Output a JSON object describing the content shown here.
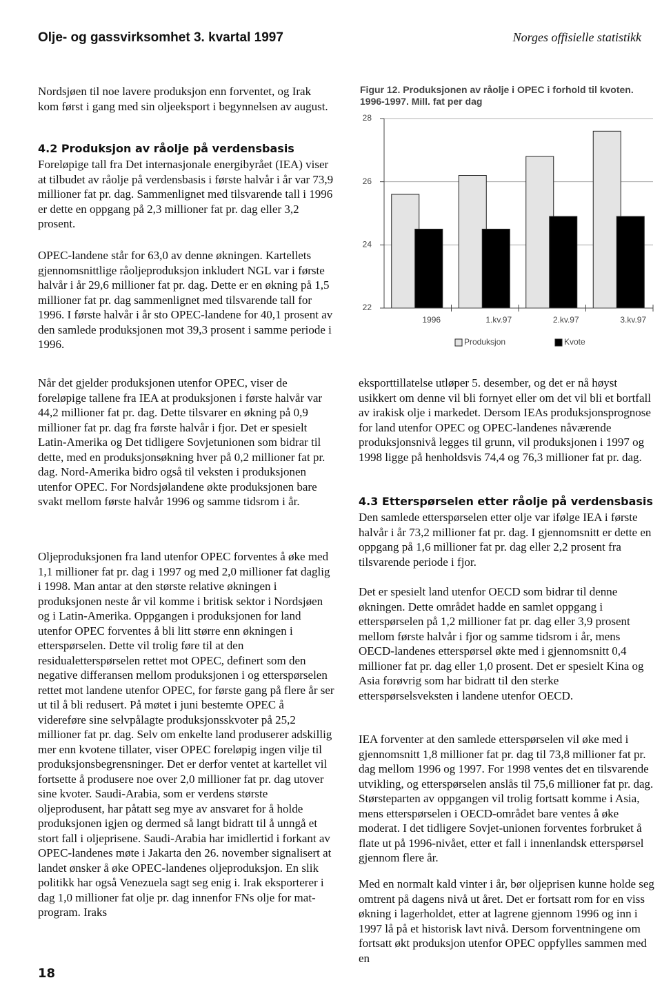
{
  "header": {
    "left": "Olje- og gassvirksomhet 3. kvartal 1997",
    "right": "Norges offisielle statistikk"
  },
  "headings": [
    "4.2 Produksjon av råolje på verdensbasis",
    "4.3 Etterspørselen etter råolje på verdensbasis"
  ],
  "paragraphs": [
    "Nordsjøen til noe lavere produksjon enn forventet, og Irak kom først i gang med sin oljeeksport i begynnelsen av august.",
    "Foreløpige tall fra Det internasjonale energibyrået (IEA) viser at tilbudet av råolje på verdensbasis i første halvår i år var 73,9 millioner fat pr. dag. Sammenlignet med tilsvarende tall i 1996 er dette en oppgang på 2,3 millioner fat pr. dag eller 3,2 prosent.",
    "OPEC-landene står for 63,0 av denne økningen. Kartellets gjennomsnittlige råoljeproduksjon inkludert NGL var i første halvår i år 29,6 millioner fat pr. dag. Dette er en økning på 1,5 millioner fat pr. dag sammenlignet med tilsvarende tall for 1996. I første halvår i år sto OPEC-landene for 40,1 prosent av den samlede produksjonen mot 39,3 prosent i samme periode i 1996.",
    "Når det gjelder produksjonen utenfor OPEC, viser de foreløpige tallene fra IEA at produksjonen i første halvår var 44,2 millioner fat pr. dag. Dette tilsvarer en økning på 0,9 millioner fat pr. dag fra første halvår i fjor. Det er spesielt Latin-Amerika og Det tidligere Sovjetunionen som bidrar til dette, med en produksjonsøkning hver på 0,2 millioner fat pr. dag. Nord-Amerika bidro også til veksten i produksjonen utenfor OPEC. For Nordsjølandene økte produksjonen bare svakt mellom første halvår 1996 og samme tidsrom i år.",
    "Oljeproduksjonen fra land utenfor OPEC forventes å øke med 1,1 millioner fat pr. dag i 1997 og med 2,0 millioner fat daglig i 1998. Man antar at den største relative økningen i produksjonen neste år vil komme i britisk sektor i Nordsjøen og i Latin-Amerika. Oppgangen i produksjonen for land utenfor OPEC forventes å bli litt større enn økningen i etterspørselen. Dette vil trolig føre til at den residualetterspørselen rettet mot OPEC, definert som den negative differansen mellom produksjonen i og etterspørselen rettet mot landene utenfor OPEC, for første gang på flere år ser ut til å bli redusert. På møtet i juni bestemte OPEC å videreføre sine selvpålagte produksjonsskvoter på 25,2 millioner fat pr. dag. Selv om enkelte land produserer adskillig mer enn kvotene tillater, viser OPEC foreløpig ingen vilje til produksjonsbegrensninger. Det er derfor ventet at kartellet vil fortsette å produsere noe over 2,0 millioner fat pr. dag utover sine kvoter. Saudi-Arabia, som er verdens største oljeprodusent, har påtatt seg mye av ansvaret for å holde produksjonen igjen og dermed så langt bidratt til å unngå et stort fall i oljeprisene. Saudi-Arabia har imidlertid i forkant av OPEC-landenes møte i Jakarta den 26. november signalisert at landet ønsker å øke OPEC-landenes oljeproduksjon. En slik politikk har også Venezuela sagt seg enig i. Irak eksporterer i dag 1,0 millioner fat olje pr. dag innenfor FNs olje for mat-program. Iraks",
    "eksporttillatelse utløper 5. desember, og det er nå høyst usikkert om denne vil bli fornyet eller om det vil bli et bortfall av irakisk olje i markedet. Dersom IEAs produksjonsprognose for land utenfor OPEC og OPEC-landenes nåværende produksjonsnivå legges til grunn, vil produksjonen i 1997 og 1998 ligge på henholdsvis 74,4 og 76,3 millioner fat pr. dag.",
    "Den samlede etterspørselen etter olje var ifølge IEA i første halvår i år 73,2 millioner fat pr. dag. I gjennomsnitt er dette en oppgang på 1,6 millioner fat pr. dag eller 2,2 prosent fra tilsvarende periode i fjor.",
    "Det er spesielt land utenfor OECD som bidrar til denne økningen. Dette området hadde en samlet oppgang i etterspørselen på 1,2 millioner fat pr. dag eller 3,9 prosent mellom første halvår i fjor og samme tidsrom i år, mens OECD-landenes etterspørsel økte med i gjennomsnitt 0,4 millioner fat pr. dag eller 1,0 prosent. Det er spesielt Kina og Asia forøvrig som har bidratt til den sterke etterspørselsveksten i landene utenfor OECD.",
    "IEA forventer at den samlede etterspørselen vil øke med i gjennomsnitt 1,8 millioner fat pr. dag til 73,8 millioner fat pr. dag mellom 1996 og 1997. For 1998 ventes det en tilsvarende utvikling, og etterspørselen anslås til 75,6 millioner fat pr. dag. Størsteparten av oppgangen vil trolig fortsatt komme i Asia, mens etterspørselen i OECD-området bare ventes å øke moderat. I det tidligere Sovjet-unionen forventes forbruket å flate ut på 1996-nivået, etter et fall i innenlandsk etterspørsel gjennom flere år.",
    "Med en normalt kald vinter i år, bør oljeprisen kunne holde seg omtrent på dagens nivå ut året. Det er fortsatt rom for en viss økning i lagerholdet, etter at lagrene gjennom 1996 og inn i 1997 lå på et historisk lavt nivå. Dersom forventningene om fortsatt økt produksjon utenfor OPEC oppfylles sammen med en"
  ],
  "page_number": "18",
  "chart_data": {
    "type": "bar",
    "title": "Figur 12. Produksjonen av råolje i OPEC i forhold til kvoten. 1996-1997. Mill. fat per dag",
    "categories": [
      "1996",
      "1.kv.97",
      "2.kv.97",
      "3.kv.97"
    ],
    "series": [
      {
        "name": "Produksjon",
        "color": "#e4e4e4",
        "values": [
          25.6,
          26.2,
          26.8,
          27.6
        ]
      },
      {
        "name": "Kvote",
        "color": "#000000",
        "values": [
          24.5,
          24.5,
          24.9,
          24.9
        ]
      }
    ],
    "ylim": [
      22,
      28
    ],
    "yticks": [
      22,
      24,
      26,
      28
    ],
    "grid": true
  }
}
